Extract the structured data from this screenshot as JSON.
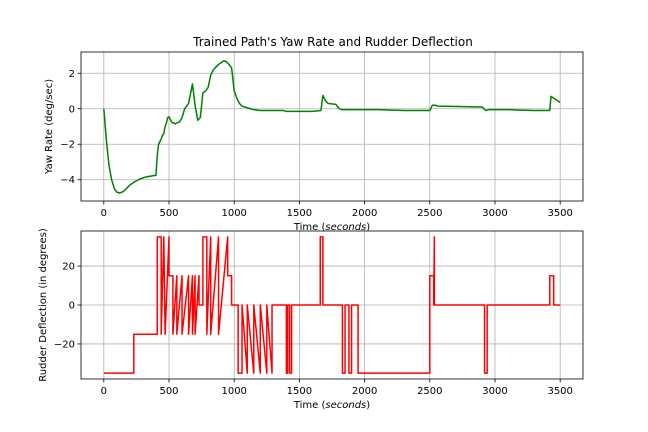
{
  "chart_data": [
    {
      "type": "line",
      "title": "Trained Path's Yaw Rate and Rudder Deflection",
      "xlabel": "Time ($seconds$)",
      "ylabel": "Yaw Rate (deg/sec)",
      "xlim": [
        -175,
        3675
      ],
      "ylim": [
        -5.2,
        3.2
      ],
      "xticks": [
        0,
        500,
        1000,
        1500,
        2000,
        2500,
        3000,
        3500
      ],
      "yticks": [
        -4,
        -2,
        0,
        2
      ],
      "grid": true,
      "color": "#008000",
      "series": [
        {
          "x": [
            0,
            20,
            40,
            60,
            80,
            100,
            120,
            140,
            160,
            180,
            200,
            240,
            280,
            320,
            360,
            400,
            410,
            420,
            440,
            450,
            460,
            470,
            480,
            490,
            500,
            510,
            520,
            530,
            540,
            550,
            560,
            580,
            600,
            620,
            650,
            680,
            700,
            720,
            740,
            760,
            780,
            800,
            820,
            840,
            860,
            880,
            900,
            920,
            940,
            960,
            980,
            1000,
            1020,
            1040,
            1060,
            1100,
            1150,
            1200,
            1250,
            1300,
            1380,
            1400,
            1500,
            1600,
            1665,
            1680,
            1700,
            1720,
            1780,
            1800,
            1820,
            1900,
            2000,
            2100,
            2300,
            2500,
            2520,
            2540,
            2560,
            2900,
            2930,
            2950,
            3000,
            3100,
            3200,
            3300,
            3420,
            3430,
            3450,
            3480,
            3500
          ],
          "y": [
            0,
            -1.8,
            -3.2,
            -4.0,
            -4.5,
            -4.7,
            -4.75,
            -4.7,
            -4.6,
            -4.45,
            -4.3,
            -4.1,
            -3.95,
            -3.85,
            -3.8,
            -3.75,
            -2.6,
            -2.0,
            -1.7,
            -1.5,
            -1.4,
            -1.0,
            -0.8,
            -0.5,
            -0.45,
            -0.6,
            -0.75,
            -0.8,
            -0.8,
            -0.85,
            -0.8,
            -0.75,
            -0.5,
            0.0,
            0.3,
            1.4,
            0.2,
            -0.65,
            -0.5,
            0.9,
            1.0,
            1.2,
            1.9,
            2.2,
            2.35,
            2.5,
            2.6,
            2.7,
            2.65,
            2.5,
            2.3,
            1.0,
            0.6,
            0.3,
            0.15,
            0.05,
            -0.05,
            -0.1,
            -0.1,
            -0.1,
            -0.1,
            -0.15,
            -0.15,
            -0.15,
            -0.1,
            0.75,
            0.45,
            0.3,
            0.25,
            0.05,
            -0.05,
            -0.05,
            -0.05,
            -0.05,
            -0.1,
            -0.1,
            0.2,
            0.2,
            0.15,
            0.1,
            -0.1,
            -0.05,
            -0.05,
            -0.05,
            -0.08,
            -0.1,
            -0.1,
            0.7,
            0.6,
            0.45,
            0.35
          ]
        }
      ]
    },
    {
      "type": "line",
      "xlabel": "Time  ($seconds$)",
      "ylabel": "Rudder Deflection (in degrees)",
      "xlim": [
        -175,
        3675
      ],
      "ylim": [
        -38,
        38
      ],
      "xticks": [
        0,
        500,
        1000,
        1500,
        2000,
        2500,
        3000,
        3500
      ],
      "yticks": [
        -20,
        0,
        20
      ],
      "grid": true,
      "color": "#ff0000",
      "series": [
        {
          "x": [
            0,
            230,
            230,
            410,
            410,
            440,
            440,
            460,
            470,
            500,
            500,
            530,
            530,
            560,
            560,
            600,
            600,
            650,
            650,
            680,
            680,
            700,
            700,
            730,
            730,
            760,
            760,
            790,
            790,
            820,
            820,
            880,
            880,
            950,
            950,
            980,
            980,
            1030,
            1030,
            1060,
            1060,
            1100,
            1100,
            1150,
            1150,
            1200,
            1200,
            1250,
            1250,
            1290,
            1290,
            1400,
            1400,
            1410,
            1410,
            1425,
            1425,
            1440,
            1440,
            1660,
            1660,
            1680,
            1680,
            1690,
            1690,
            1830,
            1830,
            1850,
            1850,
            1880,
            1880,
            1900,
            1900,
            1950,
            1950,
            2500,
            2500,
            2530,
            2530,
            2535,
            2535,
            2540,
            2540,
            2920,
            2920,
            2940,
            2940,
            3420,
            3420,
            3450,
            3450,
            3500
          ],
          "y": [
            -35,
            -35,
            -15,
            -15,
            35,
            35,
            -15,
            35,
            -15,
            35,
            15,
            15,
            -15,
            15,
            -15,
            15,
            -15,
            15,
            -15,
            15,
            -15,
            15,
            -15,
            15,
            0,
            0,
            35,
            35,
            -15,
            35,
            -15,
            35,
            -15,
            35,
            15,
            15,
            0,
            0,
            -35,
            -35,
            0,
            -35,
            0,
            -35,
            0,
            -35,
            0,
            -35,
            0,
            -35,
            0,
            0,
            -35,
            -35,
            0,
            0,
            -35,
            -35,
            0,
            0,
            35,
            35,
            0,
            0,
            0,
            0,
            -35,
            -35,
            0,
            0,
            -35,
            -35,
            0,
            0,
            -35,
            -35,
            15,
            15,
            0,
            35,
            0,
            0,
            0,
            0,
            -35,
            -35,
            0,
            0,
            15,
            15,
            0,
            0
          ]
        }
      ]
    }
  ]
}
